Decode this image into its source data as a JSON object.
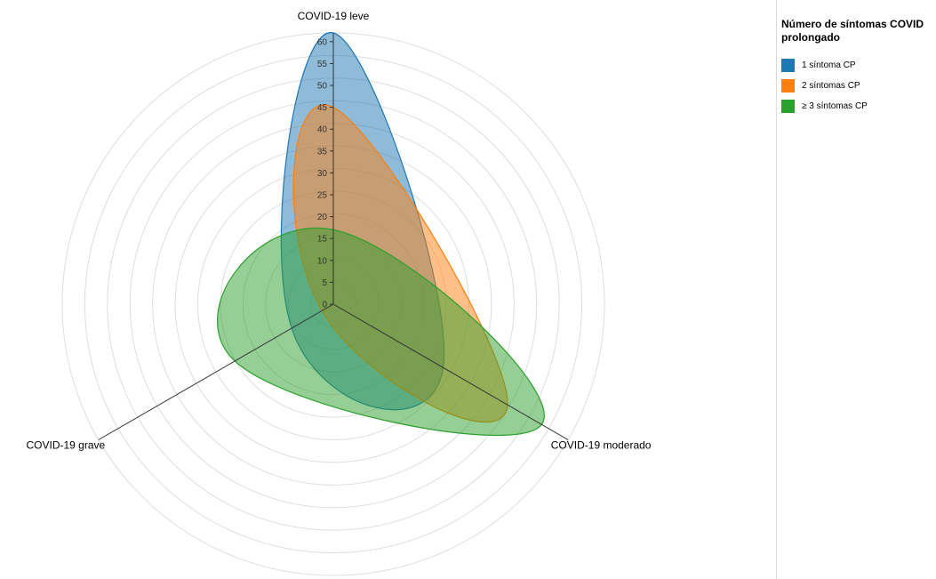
{
  "chart_data": {
    "type": "radar",
    "axes": [
      "COVID-19 leve",
      "COVID-19 moderado",
      "COVID-19 grave"
    ],
    "radial_max": 62,
    "radial_ticks": [
      0,
      5,
      10,
      15,
      20,
      25,
      30,
      35,
      40,
      45,
      50,
      55,
      60
    ],
    "series": [
      {
        "name": "1 síntoma CP",
        "color": "#1f77b4",
        "values": [
          62,
          29,
          11
        ]
      },
      {
        "name": "2 síntomas CP",
        "color": "#ff7f0e",
        "values": [
          45,
          46,
          3
        ]
      },
      {
        "name": "≥ 3 síntomas CP",
        "color": "#2ca02c",
        "values": [
          17,
          55,
          26
        ]
      }
    ],
    "grid": true,
    "legend_position": "right",
    "legend_title": "Número de síntomas COVID prolongado"
  }
}
